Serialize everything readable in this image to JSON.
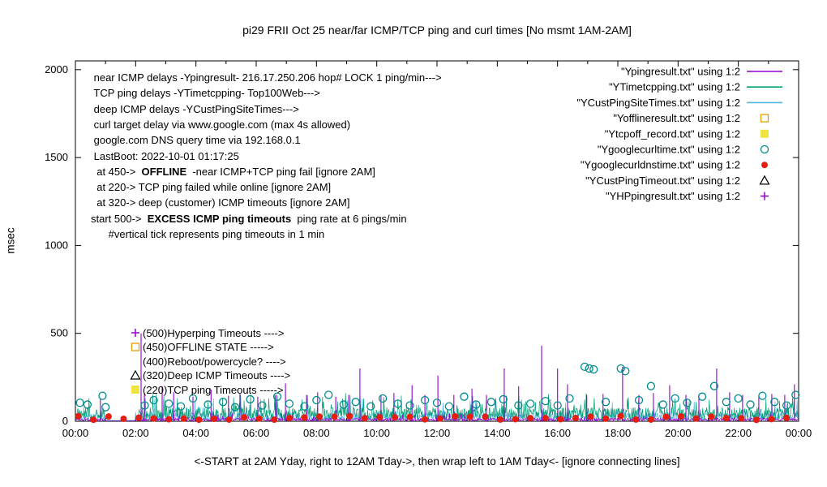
{
  "chart_data": {
    "type": "line",
    "title": "pi29 FRII Oct 25  near/far ICMP/TCP ping and curl times [No msmt 1AM-2AM]",
    "ylabel": "msec",
    "xlabel": "<-START at 2AM Yday, right to 12AM Tday->, then wrap left to 1AM Tday<- [ignore connecting lines]",
    "ylim": [
      0,
      2000
    ],
    "xlim_hours": [
      0,
      24
    ],
    "y_ticks": [
      0,
      500,
      1000,
      1500,
      2000
    ],
    "x_ticks": [
      "00:00",
      "02:00",
      "04:00",
      "06:00",
      "08:00",
      "10:00",
      "12:00",
      "14:00",
      "16:00",
      "18:00",
      "20:00",
      "22:00",
      "00:00"
    ],
    "grid": false,
    "legend_position": "top-right",
    "noise_seed": 1337,
    "series": [
      {
        "name": "Ypingresult",
        "legend_label": "\"Ypingresult.txt\" using 1:2",
        "style": "line",
        "color": "#9400d3",
        "baseline": {
          "base": 2,
          "range": 16,
          "burst_chance": 0.03,
          "burst_max": 55
        },
        "spikes": [
          [
            0.83,
            130
          ],
          [
            2.18,
            500
          ],
          [
            2.29,
            160
          ],
          [
            2.88,
            200
          ],
          [
            3.26,
            165
          ],
          [
            3.9,
            140
          ],
          [
            4.5,
            180
          ],
          [
            5.08,
            145
          ],
          [
            5.46,
            155
          ],
          [
            6.05,
            140
          ],
          [
            6.65,
            150
          ],
          [
            6.97,
            215
          ],
          [
            7.67,
            150
          ],
          [
            8.04,
            165
          ],
          [
            8.64,
            140
          ],
          [
            9.07,
            150
          ],
          [
            9.44,
            300
          ],
          [
            10.14,
            150
          ],
          [
            10.57,
            160
          ],
          [
            11.17,
            205
          ],
          [
            11.6,
            150
          ],
          [
            12.03,
            260
          ],
          [
            12.56,
            150
          ],
          [
            13.16,
            185
          ],
          [
            13.64,
            150
          ],
          [
            14.23,
            300
          ],
          [
            14.71,
            200
          ],
          [
            15.47,
            430
          ],
          [
            16.0,
            300
          ],
          [
            16.33,
            210
          ],
          [
            16.97,
            150
          ],
          [
            17.51,
            155
          ],
          [
            18.16,
            310
          ],
          [
            18.7,
            150
          ],
          [
            19.18,
            160
          ],
          [
            19.72,
            205
          ],
          [
            20.26,
            150
          ],
          [
            20.69,
            145
          ],
          [
            21.28,
            300
          ],
          [
            21.71,
            165
          ],
          [
            22.14,
            150
          ],
          [
            22.68,
            145
          ],
          [
            23.11,
            155
          ],
          [
            23.54,
            150
          ],
          [
            23.86,
            210
          ]
        ]
      },
      {
        "name": "YTimetcpping",
        "legend_label": "\"YTimetcpping.txt\" using 1:2",
        "style": "line",
        "color": "#009e73",
        "baseline": {
          "base": 4,
          "range": 75,
          "burst_chance": 0.07,
          "burst_max": 160
        }
      },
      {
        "name": "YCustPingSiteTimes",
        "legend_label": "\"YCustPingSiteTimes.txt\" using 1:2",
        "style": "line",
        "color": "#56b4e9",
        "baseline": {
          "base": 2,
          "range": 50,
          "burst_chance": 0.03,
          "burst_max": 130
        }
      },
      {
        "name": "Yofflineresult",
        "legend_label": "\"Yofflineresult.txt\" using 1:2",
        "style": "open-square",
        "color": "#e69f00",
        "points": []
      },
      {
        "name": "Ytcpoff_record",
        "legend_label": "\"Ytcpoff_record.txt\" using 1:2",
        "style": "filled-square",
        "color": "#f0e442",
        "points": []
      },
      {
        "name": "Ygooglecurltime",
        "legend_label": "\"Ygooglecurltime.txt\" using 1:2",
        "style": "open-circle",
        "color": "#008b8b",
        "points": [
          [
            0.15,
            105
          ],
          [
            0.4,
            95
          ],
          [
            0.9,
            145
          ],
          [
            1.0,
            80
          ],
          [
            2.3,
            90
          ],
          [
            2.6,
            120
          ],
          [
            3.1,
            100
          ],
          [
            3.5,
            85
          ],
          [
            3.9,
            130
          ],
          [
            4.4,
            95
          ],
          [
            4.9,
            110
          ],
          [
            5.3,
            80
          ],
          [
            5.8,
            125
          ],
          [
            6.2,
            90
          ],
          [
            6.7,
            140
          ],
          [
            7.1,
            100
          ],
          [
            7.6,
            85
          ],
          [
            8.0,
            120
          ],
          [
            8.4,
            150
          ],
          [
            8.9,
            95
          ],
          [
            9.3,
            110
          ],
          [
            9.8,
            85
          ],
          [
            10.2,
            130
          ],
          [
            10.7,
            100
          ],
          [
            11.1,
            90
          ],
          [
            11.6,
            120
          ],
          [
            12.0,
            105
          ],
          [
            12.4,
            85
          ],
          [
            12.9,
            140
          ],
          [
            13.3,
            95
          ],
          [
            13.8,
            110
          ],
          [
            14.2,
            125
          ],
          [
            14.7,
            90
          ],
          [
            15.1,
            100
          ],
          [
            15.6,
            115
          ],
          [
            16.0,
            90
          ],
          [
            16.4,
            130
          ],
          [
            16.9,
            310
          ],
          [
            17.05,
            300
          ],
          [
            17.2,
            295
          ],
          [
            17.6,
            110
          ],
          [
            18.1,
            300
          ],
          [
            18.25,
            285
          ],
          [
            18.7,
            120
          ],
          [
            19.1,
            200
          ],
          [
            19.5,
            95
          ],
          [
            19.9,
            130
          ],
          [
            20.3,
            105
          ],
          [
            20.8,
            140
          ],
          [
            21.2,
            200
          ],
          [
            21.6,
            110
          ],
          [
            22.0,
            130
          ],
          [
            22.4,
            95
          ],
          [
            22.8,
            145
          ],
          [
            23.2,
            110
          ],
          [
            23.6,
            90
          ],
          [
            23.9,
            150
          ]
        ]
      },
      {
        "name": "Ygooglecurldnstime",
        "legend_label": "\"Ygooglecurldnstime.txt\" using 1:2",
        "style": "filled-circle",
        "color": "#e51e10",
        "interval": {
          "start": 0.1,
          "step": 0.5,
          "min": 8,
          "max": 30
        }
      },
      {
        "name": "YCustPingTimeout",
        "legend_label": "\"YCustPingTimeout.txt\" using 1:2",
        "style": "open-triangle",
        "color": "#000000",
        "points": []
      },
      {
        "name": "YHPpingresult",
        "legend_label": "\"YHPpingresult.txt\" using 1:2",
        "style": "plus",
        "color": "#9400d3",
        "points": []
      }
    ],
    "annotations": {
      "info_lines": [
        {
          "parts": [
            [
              " near ICMP delays -Ypingresult- 216.17.250.206 hop# LOCK 1 ping/min--->",
              false
            ]
          ]
        },
        {
          "parts": [
            [
              " TCP ping delays -YTimetcpping- Top100Web--->",
              false
            ]
          ]
        },
        {
          "parts": [
            [
              " deep ICMP delays -YCustPingSiteTimes--->",
              false
            ]
          ]
        },
        {
          "parts": [
            [
              " curl target delay via www.google.com (max 4s allowed)",
              false
            ]
          ]
        },
        {
          "parts": [
            [
              " google.com DNS query time via 192.168.0.1",
              false
            ]
          ]
        },
        {
          "parts": [
            [
              " LastBoot: 2022-10-01 01:17:25",
              false
            ]
          ]
        },
        {
          "parts": [
            [
              "  at 450->  ",
              false
            ],
            [
              "OFFLINE",
              true
            ],
            [
              "  -near ICMP+TCP ping fail [ignore 2AM]",
              false
            ]
          ]
        },
        {
          "parts": [
            [
              "  at 220-> TCP ping failed while online [ignore 2AM]",
              false
            ]
          ]
        },
        {
          "parts": [
            [
              "  at 320-> deep (customer) ICMP timeouts [ignore 2AM]",
              false
            ]
          ]
        },
        {
          "parts": [
            [
              "start 500->  ",
              false
            ],
            [
              "EXCESS ICMP ping timeouts",
              true
            ],
            [
              "  ping rate at 6 pings/min",
              false
            ]
          ]
        },
        {
          "parts": [
            [
              "      #vertical tick represents ping timeouts in 1 min",
              false
            ]
          ]
        }
      ],
      "level_labels": [
        {
          "value": 500,
          "marker": "plus",
          "marker_color": "#9400d3",
          "text": "(500)Hyperping Timeouts ---->"
        },
        {
          "value": 450,
          "marker": "open-square",
          "marker_color": "#e69f00",
          "text": "(450)OFFLINE STATE ----->"
        },
        {
          "value": 400,
          "marker": "none",
          "marker_color": "",
          "text": "(400)Reboot/powercycle? ---->"
        },
        {
          "value": 320,
          "marker": "open-triangle",
          "marker_color": "#000000",
          "text": "(320)Deep ICMP Timeouts ---->"
        },
        {
          "value": 220,
          "marker": "filled-square",
          "marker_color": "#f0e442",
          "text": "(220)TCP ping Timeouts ----->"
        }
      ]
    }
  }
}
